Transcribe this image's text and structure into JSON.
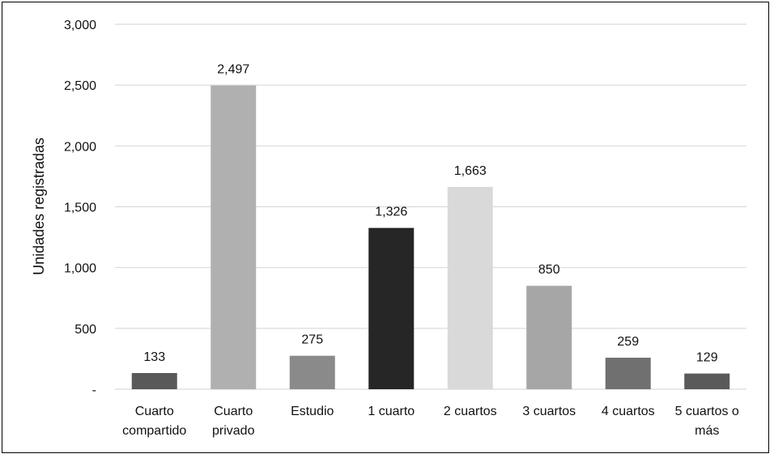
{
  "chart_data": {
    "type": "bar",
    "ylabel": "Unidades registradas",
    "ylim": [
      0,
      3000
    ],
    "yticks": [
      0,
      500,
      1000,
      1500,
      2000,
      2500,
      3000
    ],
    "ytick_labels": [
      "-",
      "500",
      "1,000",
      "1,500",
      "2,000",
      "2,500",
      "3,000"
    ],
    "grid": true,
    "categories": [
      [
        "Cuarto",
        "compartido"
      ],
      [
        "Cuarto",
        "privado"
      ],
      [
        "Estudio"
      ],
      [
        "1 cuarto"
      ],
      [
        "2 cuartos"
      ],
      [
        "3 cuartos"
      ],
      [
        "4 cuartos"
      ],
      [
        "5 cuartos o",
        "más"
      ]
    ],
    "values": [
      133,
      2497,
      275,
      1326,
      1663,
      850,
      259,
      129
    ],
    "value_labels": [
      "133",
      "2,497",
      "275",
      "1,326",
      "1,663",
      "850",
      "259",
      "129"
    ],
    "colors": [
      "#595959",
      "#b0b0b0",
      "#8a8a8a",
      "#262626",
      "#d9d9d9",
      "#a6a6a6",
      "#707070",
      "#5a5a5a"
    ]
  }
}
